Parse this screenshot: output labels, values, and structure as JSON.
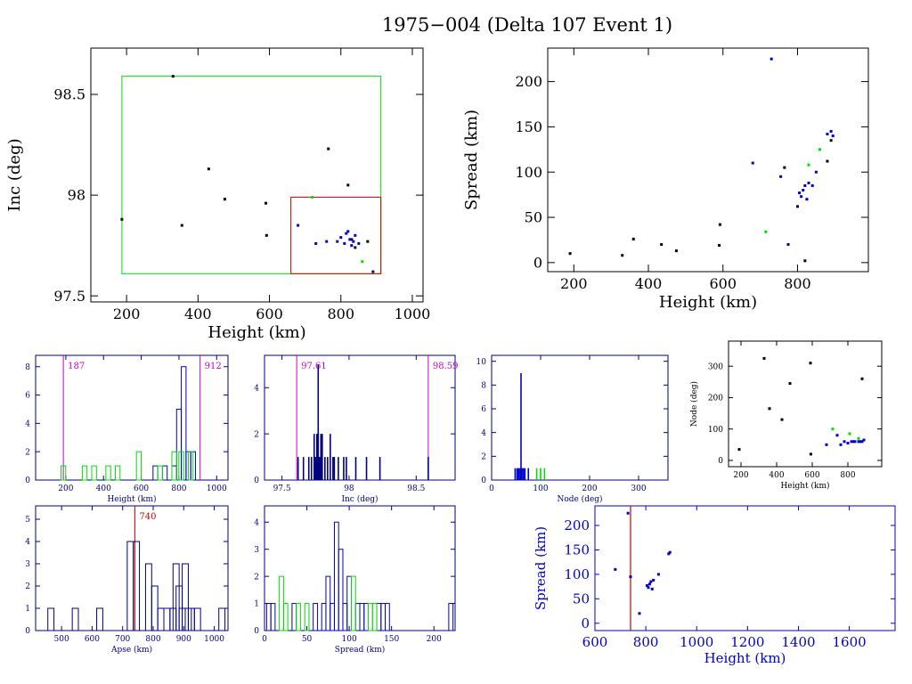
{
  "page": {
    "title": "1975−004 (Delta 107 Event 1)"
  },
  "colors": {
    "black": "#000000",
    "blue": "#0000cc",
    "green": "#00dd00",
    "red": "#cc0000",
    "magenta": "#cc00cc",
    "navy": "#000080"
  },
  "chart_data": [
    {
      "id": "inc-vs-height",
      "type": "scatter",
      "xlabel": "Height (km)",
      "ylabel": "Inc (deg)",
      "xlim": [
        100,
        1030
      ],
      "ylim": [
        97.47,
        98.73
      ],
      "xticks": [
        200,
        400,
        600,
        800,
        1000
      ],
      "yticks": [
        97.5,
        98,
        98.5
      ],
      "ytick_labels": [
        "97.5",
        "98",
        "98.5"
      ],
      "series": [
        {
          "color": "black",
          "x": [
            187,
            330,
            355,
            430,
            475,
            590,
            592,
            765,
            820,
            830,
            840,
            875
          ],
          "y": [
            97.88,
            98.59,
            97.85,
            98.13,
            97.98,
            97.96,
            97.8,
            98.23,
            98.05,
            97.78,
            97.74,
            97.77
          ]
        },
        {
          "color": "blue",
          "x": [
            680,
            730,
            760,
            790,
            800,
            810,
            815,
            820,
            825,
            830,
            835,
            840,
            850,
            890
          ],
          "y": [
            97.85,
            97.76,
            97.77,
            97.77,
            97.79,
            97.76,
            97.81,
            97.82,
            97.78,
            97.75,
            97.77,
            97.8,
            97.76,
            97.62
          ]
        },
        {
          "color": "green",
          "x": [
            720,
            860
          ],
          "y": [
            97.99,
            97.67
          ]
        }
      ],
      "boxes": [
        {
          "color": "green",
          "x": [
            187,
            912
          ],
          "y": [
            97.61,
            98.59
          ]
        },
        {
          "color": "red",
          "x": [
            660,
            912
          ],
          "y": [
            97.61,
            97.99
          ]
        }
      ]
    },
    {
      "id": "spread-vs-height",
      "type": "scatter",
      "xlabel": "Height (km)",
      "ylabel": "Spread (km)",
      "xlim": [
        130,
        990
      ],
      "ylim": [
        -10,
        237
      ],
      "xticks": [
        200,
        400,
        600,
        800
      ],
      "yticks": [
        0,
        50,
        100,
        150,
        200
      ],
      "series": [
        {
          "color": "black",
          "x": [
            190,
            330,
            360,
            435,
            475,
            590,
            592,
            765,
            800,
            820,
            880,
            890
          ],
          "y": [
            10,
            8,
            26,
            20,
            13,
            19,
            42,
            105,
            62,
            2,
            112,
            135
          ]
        },
        {
          "color": "blue",
          "x": [
            680,
            730,
            755,
            775,
            805,
            810,
            815,
            820,
            825,
            830,
            840,
            850,
            880,
            890,
            895
          ],
          "y": [
            110,
            225,
            95,
            20,
            77,
            73,
            80,
            85,
            70,
            88,
            85,
            100,
            142,
            145,
            140
          ]
        },
        {
          "color": "green",
          "x": [
            715,
            830,
            860
          ],
          "y": [
            34,
            108,
            125
          ]
        }
      ]
    },
    {
      "id": "height-histogram",
      "type": "bar",
      "xlabel": "Height (km)",
      "xlim": [
        40,
        1060
      ],
      "ylim": [
        0,
        8.8
      ],
      "xticks": [
        200,
        400,
        600,
        800,
        1000
      ],
      "yticks": [
        0,
        2,
        4,
        6,
        8
      ],
      "bin_width": 25,
      "series": [
        {
          "color": "blue",
          "bins": [
            [
              675,
              1
            ],
            [
              725,
              1
            ],
            [
              775,
              1
            ],
            [
              800,
              5
            ],
            [
              825,
              8
            ],
            [
              850,
              2
            ],
            [
              875,
              2
            ]
          ]
        },
        {
          "color": "green",
          "bins": [
            [
              187,
              1
            ],
            [
              300,
              1
            ],
            [
              350,
              1
            ],
            [
              425,
              1
            ],
            [
              475,
              1
            ],
            [
              587,
              2
            ],
            [
              700,
              1
            ],
            [
              775,
              2
            ],
            [
              812,
              2
            ],
            [
              862,
              2
            ]
          ]
        }
      ],
      "markers": [
        {
          "label": "187",
          "x": 187,
          "color": "magenta"
        },
        {
          "label": "912",
          "x": 912,
          "color": "magenta"
        }
      ]
    },
    {
      "id": "inc-histogram",
      "type": "bar",
      "xlabel": "Inc (deg)",
      "xlim": [
        97.37,
        98.79
      ],
      "ylim": [
        0,
        5.4
      ],
      "xticks": [
        97.5,
        98,
        98.5
      ],
      "xtick_labels": [
        "97.5",
        "98",
        "98.5"
      ],
      "yticks": [
        0,
        2,
        4
      ],
      "counts": [
        [
          97.62,
          1
        ],
        [
          97.66,
          1
        ],
        [
          97.7,
          1
        ],
        [
          97.72,
          1
        ],
        [
          97.74,
          2
        ],
        [
          97.75,
          1
        ],
        [
          97.76,
          2
        ],
        [
          97.77,
          5
        ],
        [
          97.78,
          1
        ],
        [
          97.79,
          2
        ],
        [
          97.8,
          2
        ],
        [
          97.82,
          1
        ],
        [
          97.84,
          1
        ],
        [
          97.86,
          2
        ],
        [
          97.88,
          1
        ],
        [
          97.89,
          1
        ],
        [
          97.92,
          1
        ],
        [
          97.96,
          1
        ],
        [
          97.98,
          1
        ],
        [
          98.05,
          1
        ],
        [
          98.13,
          1
        ],
        [
          98.23,
          1
        ],
        [
          98.59,
          1
        ]
      ],
      "markers": [
        {
          "label": "97.61",
          "x": 97.61,
          "color": "magenta"
        },
        {
          "label": "98.59",
          "x": 98.59,
          "color": "magenta"
        }
      ]
    },
    {
      "id": "node-histogram",
      "type": "bar",
      "xlabel": "Node (deg)",
      "xlim": [
        0,
        360
      ],
      "ylim": [
        0,
        10.5
      ],
      "xticks": [
        0,
        100,
        200,
        300
      ],
      "yticks": [
        0,
        2,
        4,
        6,
        8,
        10
      ],
      "series": [
        {
          "color": "blue",
          "counts": [
            [
              48,
              1
            ],
            [
              52,
              1
            ],
            [
              55,
              1
            ],
            [
              58,
              1
            ],
            [
              60,
              9
            ],
            [
              62,
              1
            ],
            [
              65,
              1
            ],
            [
              68,
              1
            ],
            [
              75,
              1
            ]
          ]
        },
        {
          "color": "green",
          "counts": [
            [
              92,
              1
            ],
            [
              100,
              1
            ],
            [
              108,
              1
            ]
          ]
        }
      ]
    },
    {
      "id": "node-vs-height",
      "type": "scatter",
      "xlabel": "Height (km)",
      "ylabel": "Node (deg)",
      "xlim": [
        130,
        990
      ],
      "ylim": [
        -20,
        380
      ],
      "xticks": [
        200,
        400,
        600,
        800
      ],
      "yticks": [
        0,
        100,
        200,
        300
      ],
      "series": [
        {
          "color": "black",
          "x": [
            190,
            330,
            360,
            430,
            475,
            590,
            592,
            880
          ],
          "y": [
            35,
            325,
            165,
            130,
            245,
            310,
            20,
            260
          ]
        },
        {
          "color": "blue",
          "x": [
            680,
            740,
            760,
            780,
            800,
            820,
            830,
            840,
            860,
            870,
            880,
            890
          ],
          "y": [
            50,
            80,
            50,
            60,
            55,
            60,
            60,
            60,
            60,
            60,
            60,
            65
          ]
        },
        {
          "color": "green",
          "x": [
            715,
            810,
            860
          ],
          "y": [
            100,
            85,
            70
          ]
        }
      ]
    },
    {
      "id": "apse-histogram",
      "type": "bar",
      "xlabel": "Apse (km)",
      "xlim": [
        415,
        1045
      ],
      "ylim": [
        0,
        5.6
      ],
      "xticks": [
        500,
        600,
        700,
        800,
        900,
        1000
      ],
      "yticks": [
        0,
        1,
        2,
        3,
        4,
        5
      ],
      "counts": [
        [
          465,
          1
        ],
        [
          545,
          1
        ],
        [
          625,
          1
        ],
        [
          725,
          4
        ],
        [
          745,
          4
        ],
        [
          785,
          3
        ],
        [
          805,
          2
        ],
        [
          825,
          1
        ],
        [
          845,
          1
        ],
        [
          865,
          1
        ],
        [
          875,
          3
        ],
        [
          885,
          2
        ],
        [
          895,
          1
        ],
        [
          905,
          3
        ],
        [
          915,
          1
        ],
        [
          925,
          1
        ],
        [
          945,
          1
        ],
        [
          1025,
          1
        ]
      ],
      "bin_width": 20,
      "markers": [
        {
          "label": "740",
          "x": 740,
          "color": "red"
        }
      ]
    },
    {
      "id": "spread-histogram",
      "type": "bar",
      "xlabel": "Spread (km)",
      "xlim": [
        0,
        225
      ],
      "ylim": [
        0,
        4.6
      ],
      "xticks": [
        0,
        50,
        100,
        150,
        200
      ],
      "yticks": [
        0,
        1,
        2,
        3,
        4
      ],
      "bin_width": 5,
      "series": [
        {
          "color": "blue",
          "counts": [
            [
              5,
              1
            ],
            [
              10,
              1
            ],
            [
              35,
              1
            ],
            [
              60,
              1
            ],
            [
              70,
              1
            ],
            [
              75,
              2
            ],
            [
              80,
              1
            ],
            [
              85,
              4
            ],
            [
              90,
              3
            ],
            [
              95,
              1
            ],
            [
              100,
              2
            ],
            [
              110,
              1
            ],
            [
              115,
              1
            ],
            [
              120,
              1
            ],
            [
              135,
              1
            ],
            [
              140,
              1
            ],
            [
              145,
              1
            ],
            [
              220,
              1
            ]
          ]
        },
        {
          "color": "green",
          "counts": [
            [
              20,
              2
            ],
            [
              25,
              1
            ],
            [
              40,
              1
            ],
            [
              50,
              1
            ],
            [
              105,
              2
            ],
            [
              125,
              1
            ],
            [
              130,
              1
            ]
          ]
        }
      ]
    },
    {
      "id": "spread-vs-height-wide",
      "type": "scatter",
      "xlabel": "Height (km)",
      "ylabel": "Spread (km)",
      "xlim": [
        600,
        1780
      ],
      "ylim": [
        -15,
        240
      ],
      "xticks": [
        600,
        800,
        1000,
        1200,
        1400,
        1600
      ],
      "yticks": [
        0,
        50,
        100,
        150,
        200
      ],
      "series": [
        {
          "color": "blue",
          "x": [
            680,
            730,
            740,
            775,
            805,
            810,
            815,
            820,
            825,
            830,
            850,
            890,
            895
          ],
          "y": [
            110,
            225,
            95,
            20,
            77,
            73,
            80,
            85,
            70,
            88,
            100,
            142,
            145
          ]
        }
      ],
      "markers": [
        {
          "x": 740,
          "color": "red"
        }
      ]
    }
  ]
}
